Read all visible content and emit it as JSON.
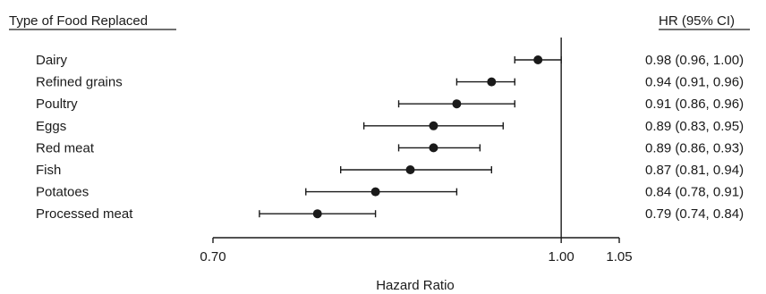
{
  "headers": {
    "left": "Type of Food Replaced",
    "right": "HR (95% CI)"
  },
  "chart_data": {
    "type": "forest",
    "xlabel": "Hazard Ratio",
    "xlim": [
      0.7,
      1.05
    ],
    "xticks": [
      0.7,
      1.0,
      1.05
    ],
    "xtick_labels": [
      "0.70",
      "1.00",
      "1.05"
    ],
    "reference_line": 1.0,
    "rows": [
      {
        "label": "Dairy",
        "hr": 0.98,
        "lo": 0.96,
        "hi": 1.0,
        "text": "0.98 (0.96, 1.00)"
      },
      {
        "label": "Refined grains",
        "hr": 0.94,
        "lo": 0.91,
        "hi": 0.96,
        "text": "0.94 (0.91, 0.96)"
      },
      {
        "label": "Poultry",
        "hr": 0.91,
        "lo": 0.86,
        "hi": 0.96,
        "text": "0.91 (0.86, 0.96)"
      },
      {
        "label": "Eggs",
        "hr": 0.89,
        "lo": 0.83,
        "hi": 0.95,
        "text": "0.89 (0.83, 0.95)"
      },
      {
        "label": "Red meat",
        "hr": 0.89,
        "lo": 0.86,
        "hi": 0.93,
        "text": "0.89 (0.86, 0.93)"
      },
      {
        "label": "Fish",
        "hr": 0.87,
        "lo": 0.81,
        "hi": 0.94,
        "text": "0.87 (0.81, 0.94)"
      },
      {
        "label": "Potatoes",
        "hr": 0.84,
        "lo": 0.78,
        "hi": 0.91,
        "text": "0.84 (0.78, 0.91)"
      },
      {
        "label": "Processed meat",
        "hr": 0.79,
        "lo": 0.74,
        "hi": 0.84,
        "text": "0.79 (0.74, 0.84)"
      }
    ]
  }
}
